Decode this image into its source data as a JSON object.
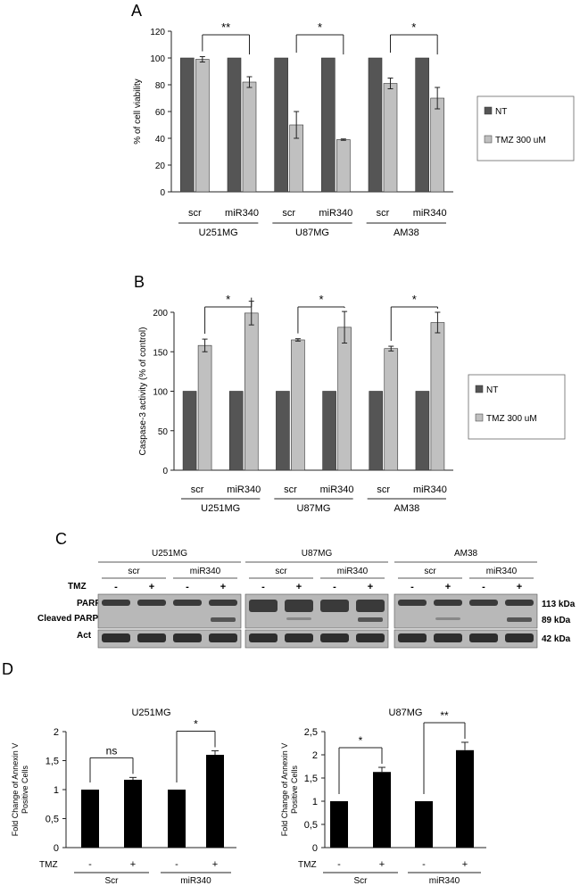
{
  "chart_data": [
    {
      "panel_label": "A",
      "type": "bar",
      "ylabel": "% of cell viability",
      "ylim": [
        0,
        120
      ],
      "yticks": [
        0,
        20,
        40,
        60,
        80,
        100,
        120
      ],
      "categories": [
        "scr",
        "miR340",
        "scr",
        "miR340",
        "scr",
        "miR340"
      ],
      "groups": [
        "U251MG",
        "U87MG",
        "AM38"
      ],
      "series": [
        {
          "name": "NT",
          "color": "#555555",
          "values": [
            100,
            100,
            100,
            100,
            100,
            100
          ],
          "errors": [
            0,
            0,
            0,
            0,
            0,
            0
          ]
        },
        {
          "name": "TMZ 300 uM",
          "color": "#c0c0c0",
          "values": [
            99,
            82,
            50,
            39,
            81,
            70
          ],
          "errors": [
            2,
            4,
            10,
            0.5,
            4,
            8
          ]
        }
      ],
      "significance": [
        "**",
        "*",
        "*"
      ],
      "legend_position": "right",
      "grid": false
    },
    {
      "panel_label": "B",
      "type": "bar",
      "ylabel": "Caspase-3 activity (% of control)",
      "ylim": [
        0,
        200
      ],
      "yticks": [
        0,
        50,
        100,
        150,
        200
      ],
      "categories": [
        "scr",
        "miR340",
        "scr",
        "miR340",
        "scr",
        "miR340"
      ],
      "groups": [
        "U251MG",
        "U87MG",
        "AM38"
      ],
      "series": [
        {
          "name": "NT",
          "color": "#555555",
          "values": [
            100,
            100,
            100,
            100,
            100,
            100
          ],
          "errors": [
            0,
            0,
            0,
            0,
            0,
            0
          ]
        },
        {
          "name": "TMZ 300 uM",
          "color": "#c0c0c0",
          "values": [
            158,
            199,
            165,
            181,
            154,
            187
          ],
          "errors": [
            8,
            15,
            1.5,
            20,
            3,
            13
          ]
        }
      ],
      "significance": [
        "*",
        "*",
        "*"
      ],
      "legend_position": "right",
      "grid": false
    },
    {
      "panel_label": "D",
      "title": "U251MG",
      "type": "bar",
      "ylabel": "Fold Change of Annexin V Positive Cells",
      "ylim": [
        0,
        2
      ],
      "yticks": [
        "0",
        "0,5",
        "1",
        "1,5",
        "2"
      ],
      "categories": [
        "-",
        "+",
        "-",
        "+"
      ],
      "groups": [
        "Scr",
        "miR340"
      ],
      "row_label": "TMZ",
      "values": [
        1.0,
        1.17,
        1.0,
        1.6
      ],
      "errors": [
        0,
        0.04,
        0,
        0.07
      ],
      "significance": [
        "ns",
        "*"
      ],
      "color": "#000000"
    },
    {
      "title": "U87MG",
      "type": "bar",
      "ylabel": "Fold Change of Annexin V Positive Cells",
      "ylim": [
        0,
        2.5
      ],
      "yticks": [
        "0",
        "0,5",
        "1",
        "1,5",
        "2",
        "2,5"
      ],
      "categories": [
        "-",
        "+",
        "-",
        "+"
      ],
      "groups": [
        "Scr",
        "miR340"
      ],
      "row_label": "TMZ",
      "values": [
        1.0,
        1.63,
        1.0,
        2.1
      ],
      "errors": [
        0,
        0.1,
        0,
        0.17
      ],
      "significance": [
        "*",
        "**"
      ],
      "color": "#000000"
    }
  ],
  "western_blot": {
    "panel_label": "C",
    "cell_lines": [
      "U251MG",
      "U87MG",
      "AM38"
    ],
    "conditions": [
      "scr",
      "miR340"
    ],
    "row_label": "TMZ",
    "tmz_marks": [
      "-",
      "+",
      "-",
      "+"
    ],
    "rows": [
      {
        "label": "PARP",
        "size": "113 kDa"
      },
      {
        "label": "Cleaved PARP",
        "size": "89 kDa"
      },
      {
        "label": "Act",
        "size": "42 kDa"
      }
    ]
  }
}
